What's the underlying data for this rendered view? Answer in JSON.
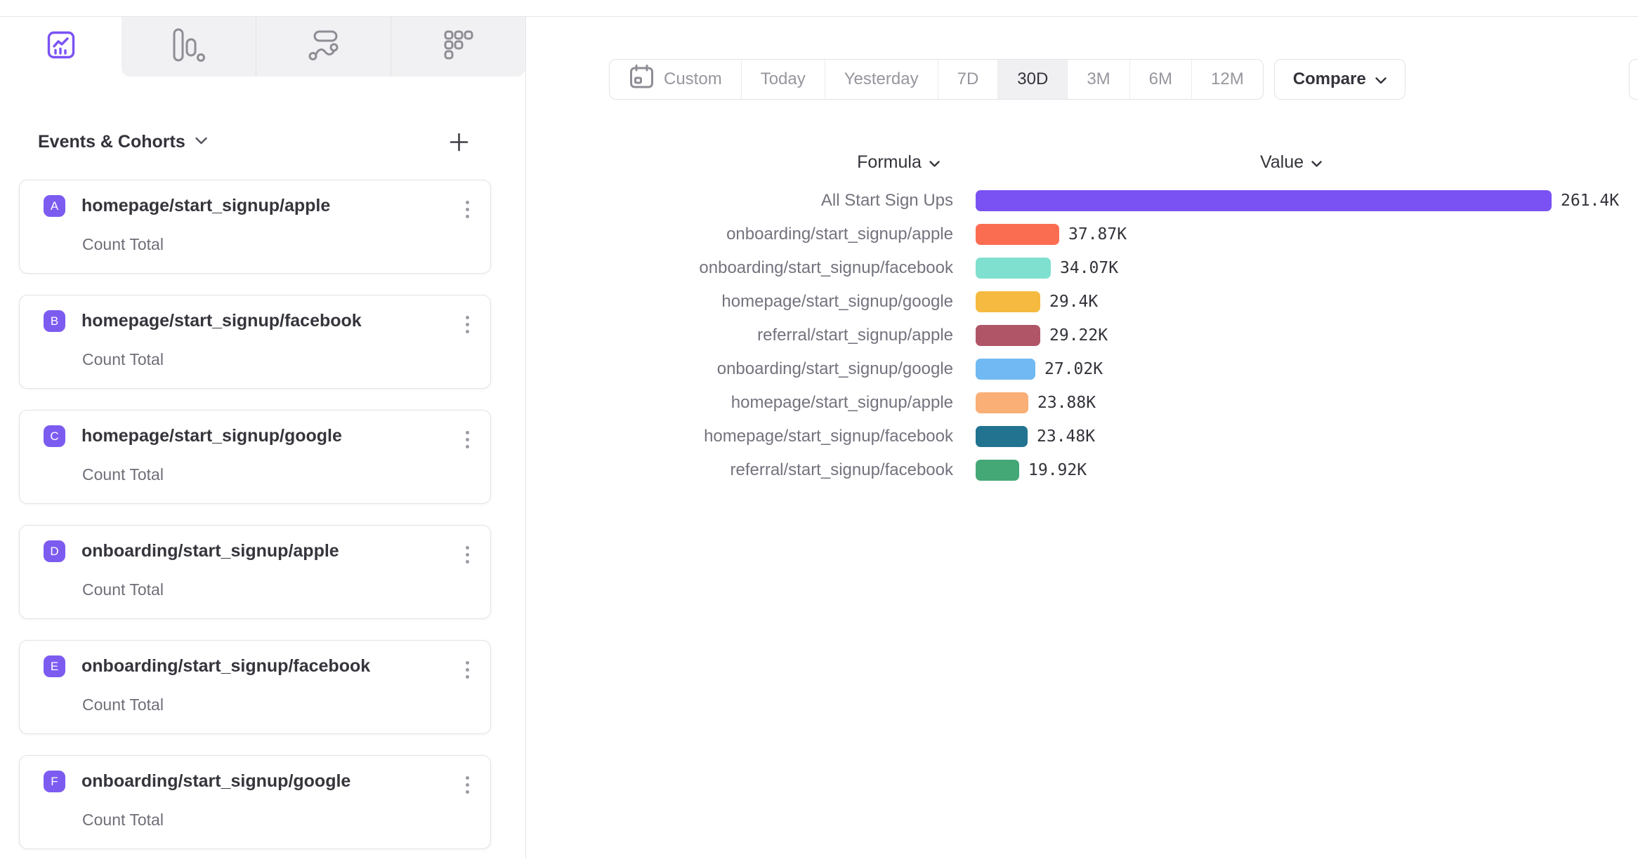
{
  "topbar": {
    "tabs": [
      {
        "id": "insights",
        "icon": "line-chart-icon",
        "active": true
      },
      {
        "id": "funnels",
        "icon": "funnel-bars-icon",
        "active": false
      },
      {
        "id": "flows",
        "icon": "flows-icon",
        "active": false
      },
      {
        "id": "retention",
        "icon": "retention-dots-icon",
        "active": false
      }
    ]
  },
  "sidebar": {
    "header": {
      "title": "Events & Cohorts"
    },
    "cards": [
      {
        "badge": "A",
        "title": "homepage/start_signup/apple",
        "subtitle": "Count Total"
      },
      {
        "badge": "B",
        "title": "homepage/start_signup/facebook",
        "subtitle": "Count Total"
      },
      {
        "badge": "C",
        "title": "homepage/start_signup/google",
        "subtitle": "Count Total"
      },
      {
        "badge": "D",
        "title": "onboarding/start_signup/apple",
        "subtitle": "Count Total"
      },
      {
        "badge": "E",
        "title": "onboarding/start_signup/facebook",
        "subtitle": "Count Total"
      },
      {
        "badge": "F",
        "title": "onboarding/start_signup/google",
        "subtitle": "Count Total"
      }
    ],
    "badge_color": "#7c5cf0"
  },
  "controls": {
    "date_ranges": [
      "Custom",
      "Today",
      "Yesterday",
      "7D",
      "30D",
      "3M",
      "6M",
      "12M"
    ],
    "selected_range": "30D",
    "custom_has_calendar_icon": true,
    "compare_label": "Compare"
  },
  "chart": {
    "formula_header": "Formula",
    "value_header": "Value"
  },
  "chart_data": {
    "type": "bar",
    "orientation": "horizontal",
    "categories": [
      "All Start Sign Ups",
      "onboarding/start_signup/apple",
      "onboarding/start_signup/facebook",
      "homepage/start_signup/google",
      "referral/start_signup/apple",
      "onboarding/start_signup/google",
      "homepage/start_signup/apple",
      "homepage/start_signup/facebook",
      "referral/start_signup/facebook"
    ],
    "values": [
      261400,
      37870,
      34070,
      29400,
      29220,
      27020,
      23880,
      23480,
      19920
    ],
    "value_labels": [
      "261.4K",
      "37.87K",
      "34.07K",
      "29.4K",
      "29.22K",
      "27.02K",
      "23.88K",
      "23.48K",
      "19.92K"
    ],
    "colors": [
      "#7a52f4",
      "#fb6d51",
      "#80e0d0",
      "#f6ba41",
      "#b05568",
      "#70b9f2",
      "#faaf76",
      "#217390",
      "#44a876"
    ],
    "xlim": [
      0,
      261400
    ],
    "legend": "none",
    "grid": false
  },
  "theme": {
    "accent": "#7a52f4"
  }
}
